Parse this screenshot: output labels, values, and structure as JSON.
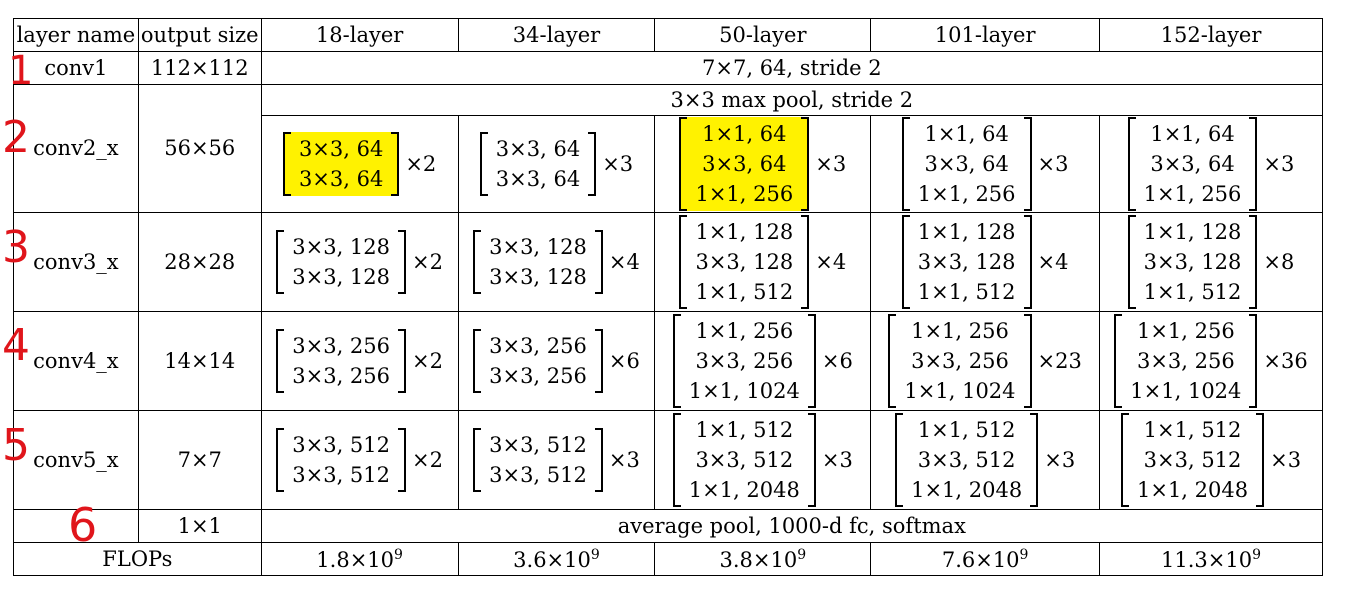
{
  "header": {
    "layer_name": "layer name",
    "output_size": "output size",
    "l18": "18-layer",
    "l34": "34-layer",
    "l50": "50-layer",
    "l101": "101-layer",
    "l152": "152-layer"
  },
  "conv1": {
    "name": "conv1",
    "size": "112×112",
    "spec": "7×7, 64, stride 2"
  },
  "pool": {
    "spec": "3×3 max pool, stride 2"
  },
  "conv2": {
    "name": "conv2_x",
    "size": "56×56",
    "l18": {
      "rows": [
        "3×3, 64",
        "3×3, 64"
      ],
      "mult": "×2"
    },
    "l34": {
      "rows": [
        "3×3, 64",
        "3×3, 64"
      ],
      "mult": "×3"
    },
    "l50": {
      "rows": [
        "1×1, 64",
        "3×3, 64",
        "1×1, 256"
      ],
      "mult": "×3"
    },
    "l101": {
      "rows": [
        "1×1, 64",
        "3×3, 64",
        "1×1, 256"
      ],
      "mult": "×3"
    },
    "l152": {
      "rows": [
        "1×1, 64",
        "3×3, 64",
        "1×1, 256"
      ],
      "mult": "×3"
    }
  },
  "conv3": {
    "name": "conv3_x",
    "size": "28×28",
    "l18": {
      "rows": [
        "3×3, 128",
        "3×3, 128"
      ],
      "mult": "×2"
    },
    "l34": {
      "rows": [
        "3×3, 128",
        "3×3, 128"
      ],
      "mult": "×4"
    },
    "l50": {
      "rows": [
        "1×1, 128",
        "3×3, 128",
        "1×1, 512"
      ],
      "mult": "×4"
    },
    "l101": {
      "rows": [
        "1×1, 128",
        "3×3, 128",
        "1×1, 512"
      ],
      "mult": "×4"
    },
    "l152": {
      "rows": [
        "1×1, 128",
        "3×3, 128",
        "1×1, 512"
      ],
      "mult": "×8"
    }
  },
  "conv4": {
    "name": "conv4_x",
    "size": "14×14",
    "l18": {
      "rows": [
        "3×3, 256",
        "3×3, 256"
      ],
      "mult": "×2"
    },
    "l34": {
      "rows": [
        "3×3, 256",
        "3×3, 256"
      ],
      "mult": "×6"
    },
    "l50": {
      "rows": [
        "1×1, 256",
        "3×3, 256",
        "1×1, 1024"
      ],
      "mult": "×6"
    },
    "l101": {
      "rows": [
        "1×1, 256",
        "3×3, 256",
        "1×1, 1024"
      ],
      "mult": "×23"
    },
    "l152": {
      "rows": [
        "1×1, 256",
        "3×3, 256",
        "1×1, 1024"
      ],
      "mult": "×36"
    }
  },
  "conv5": {
    "name": "conv5_x",
    "size": "7×7",
    "l18": {
      "rows": [
        "3×3, 512",
        "3×3, 512"
      ],
      "mult": "×2"
    },
    "l34": {
      "rows": [
        "3×3, 512",
        "3×3, 512"
      ],
      "mult": "×3"
    },
    "l50": {
      "rows": [
        "1×1, 512",
        "3×3, 512",
        "1×1, 2048"
      ],
      "mult": "×3"
    },
    "l101": {
      "rows": [
        "1×1, 512",
        "3×3, 512",
        "1×1, 2048"
      ],
      "mult": "×3"
    },
    "l152": {
      "rows": [
        "1×1, 512",
        "3×3, 512",
        "1×1, 2048"
      ],
      "mult": "×3"
    }
  },
  "fc": {
    "size": "1×1",
    "spec": "average pool, 1000-d fc, softmax"
  },
  "flops": {
    "label": "FLOPs",
    "l18": "1.8×10",
    "l34": "3.6×10",
    "l50": "3.8×10",
    "l101": "7.6×10",
    "l152": "11.3×10",
    "exp": "9"
  },
  "annotations": {
    "a1": "1",
    "a2": "2",
    "a3": "3",
    "a4": "4",
    "a5": "5",
    "a6": "6"
  },
  "colors": {
    "highlight": "#fff200",
    "annotation": "#e0151b"
  }
}
